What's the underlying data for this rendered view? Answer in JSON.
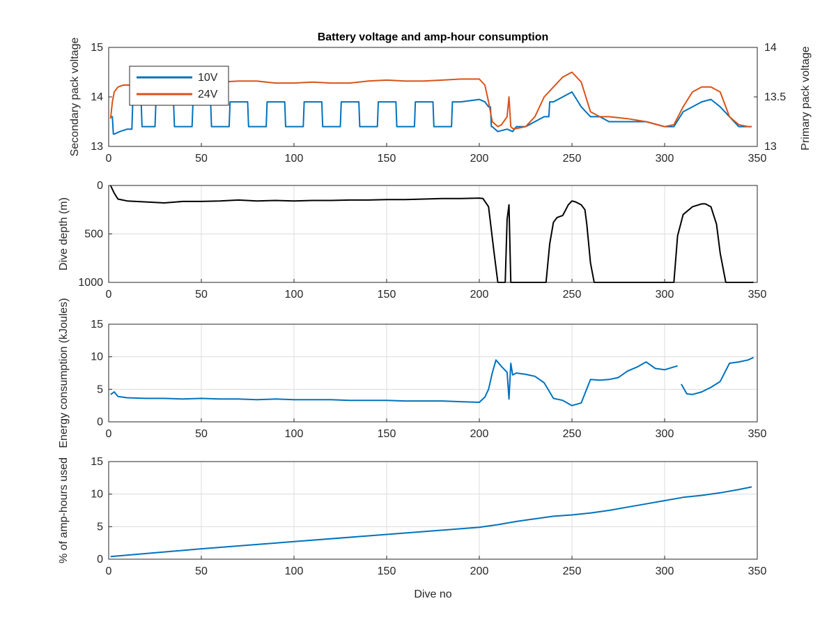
{
  "figure": {
    "title": "Battery voltage and amp-hour consumption",
    "xlabel": "Dive no",
    "colors": {
      "blue": "#0072BD",
      "orange": "#D95319",
      "black": "#000000",
      "axis": "#262626"
    }
  },
  "chart_data": [
    {
      "type": "line",
      "title": "Battery voltage and amp-hour consumption",
      "xlabel": "",
      "xlim": [
        0,
        350
      ],
      "xticks": [
        "0",
        "50",
        "100",
        "150",
        "200",
        "250",
        "300",
        "350"
      ],
      "ylabel": "Secondary pack voltage",
      "ylim": [
        13,
        15
      ],
      "yticks": [
        "13",
        "14",
        "15"
      ],
      "ylabel_right": "Primary pack voltage",
      "ylim_right": [
        13,
        14
      ],
      "yticks_right": [
        "13",
        "13.5",
        "14"
      ],
      "grid": false,
      "legend": "top-left",
      "series": [
        {
          "name": "10V",
          "axis": "left",
          "color": "#0072BD",
          "style": "square-wave",
          "x": [
            1,
            3,
            6,
            10,
            15,
            20,
            30,
            40,
            50,
            60,
            70,
            80,
            90,
            100,
            110,
            120,
            130,
            140,
            150,
            160,
            170,
            180,
            190,
            200,
            203,
            205,
            207,
            210,
            215,
            218,
            220,
            225,
            230,
            235,
            240,
            245,
            250,
            255,
            260,
            265,
            270,
            280,
            290,
            300,
            305,
            310,
            315,
            320,
            325,
            330,
            335,
            340,
            345,
            347
          ],
          "y": [
            13.6,
            13.25,
            13.3,
            13.35,
            13.9,
            13.4,
            13.9,
            13.4,
            13.9,
            13.4,
            13.9,
            13.4,
            13.9,
            13.4,
            13.9,
            13.4,
            13.9,
            13.4,
            13.9,
            13.4,
            13.9,
            13.4,
            13.9,
            13.95,
            13.9,
            13.8,
            13.4,
            13.3,
            13.35,
            13.3,
            13.4,
            13.4,
            13.5,
            13.6,
            13.9,
            14.0,
            14.1,
            13.8,
            13.6,
            13.6,
            13.5,
            13.5,
            13.5,
            13.4,
            13.4,
            13.7,
            13.8,
            13.9,
            13.95,
            13.8,
            13.6,
            13.4,
            13.4,
            13.4
          ]
        },
        {
          "name": "24V",
          "axis": "right",
          "color": "#D95319",
          "x": [
            1,
            2,
            3,
            5,
            8,
            10,
            20,
            30,
            40,
            50,
            60,
            70,
            80,
            90,
            100,
            110,
            120,
            130,
            140,
            150,
            160,
            170,
            180,
            190,
            200,
            203,
            205,
            207,
            210,
            212,
            215,
            216,
            217,
            218,
            220,
            225,
            230,
            235,
            240,
            245,
            250,
            255,
            260,
            265,
            270,
            280,
            290,
            300,
            305,
            310,
            315,
            320,
            325,
            330,
            335,
            340,
            345,
            347
          ],
          "y": [
            13.28,
            13.45,
            13.55,
            13.6,
            13.62,
            13.62,
            13.62,
            13.62,
            13.64,
            13.64,
            13.65,
            13.66,
            13.66,
            13.64,
            13.64,
            13.65,
            13.64,
            13.64,
            13.66,
            13.67,
            13.66,
            13.66,
            13.67,
            13.68,
            13.68,
            13.62,
            13.45,
            13.25,
            13.2,
            13.22,
            13.3,
            13.5,
            13.2,
            13.18,
            13.18,
            13.2,
            13.3,
            13.5,
            13.6,
            13.7,
            13.75,
            13.65,
            13.35,
            13.3,
            13.3,
            13.28,
            13.25,
            13.2,
            13.22,
            13.4,
            13.55,
            13.6,
            13.6,
            13.55,
            13.3,
            13.22,
            13.2,
            13.2
          ]
        }
      ]
    },
    {
      "type": "line",
      "title": "",
      "xlabel": "",
      "xlim": [
        0,
        350
      ],
      "xticks": [
        "0",
        "50",
        "100",
        "150",
        "200",
        "250",
        "300",
        "350"
      ],
      "ylabel": "Dive depth (m)",
      "ylim": [
        0,
        1000
      ],
      "y_reversed": true,
      "yticks": [
        "0",
        "500",
        "1000"
      ],
      "grid": true,
      "series": [
        {
          "name": "",
          "color": "#000000",
          "x": [
            1,
            3,
            5,
            10,
            20,
            30,
            40,
            50,
            60,
            70,
            80,
            90,
            100,
            110,
            120,
            130,
            140,
            150,
            160,
            170,
            180,
            190,
            200,
            202,
            205,
            208,
            210,
            214,
            215,
            216,
            217,
            218,
            220,
            230,
            236,
            238,
            240,
            242,
            245,
            248,
            250,
            252,
            255,
            257,
            258,
            260,
            262,
            290,
            300,
            305,
            307,
            310,
            315,
            320,
            322,
            325,
            328,
            330,
            333,
            340,
            348
          ],
          "y": [
            0,
            80,
            140,
            160,
            170,
            180,
            165,
            165,
            160,
            150,
            160,
            155,
            160,
            155,
            155,
            150,
            150,
            145,
            145,
            140,
            135,
            135,
            130,
            135,
            220,
            700,
            1000,
            1000,
            350,
            200,
            1000,
            1000,
            1000,
            1000,
            1000,
            600,
            380,
            330,
            310,
            200,
            160,
            170,
            200,
            250,
            400,
            800,
            1000,
            1000,
            1000,
            1000,
            520,
            300,
            220,
            190,
            190,
            220,
            400,
            700,
            1000,
            1000,
            1000
          ]
        }
      ]
    },
    {
      "type": "line",
      "title": "",
      "xlabel": "",
      "xlim": [
        0,
        350
      ],
      "xticks": [
        "0",
        "50",
        "100",
        "150",
        "200",
        "250",
        "300",
        "350"
      ],
      "ylabel": "Energy consumption (kJoules)",
      "ylim": [
        0,
        15
      ],
      "yticks": [
        "0",
        "5",
        "10",
        "15"
      ],
      "grid": true,
      "series": [
        {
          "name": "",
          "color": "#0072BD",
          "gap_after_x": 307,
          "x": [
            1,
            3,
            5,
            10,
            20,
            30,
            40,
            50,
            60,
            70,
            80,
            90,
            100,
            110,
            120,
            130,
            140,
            150,
            160,
            170,
            180,
            190,
            200,
            203,
            205,
            207,
            209,
            212,
            215,
            216,
            217,
            218,
            220,
            225,
            230,
            235,
            240,
            245,
            250,
            255,
            260,
            265,
            270,
            275,
            280,
            285,
            290,
            295,
            300,
            307,
            309,
            312,
            315,
            320,
            325,
            330,
            335,
            340,
            345,
            348
          ],
          "y": [
            4.2,
            4.6,
            3.9,
            3.7,
            3.6,
            3.6,
            3.5,
            3.6,
            3.5,
            3.5,
            3.4,
            3.5,
            3.4,
            3.4,
            3.4,
            3.3,
            3.3,
            3.3,
            3.2,
            3.2,
            3.2,
            3.1,
            3.0,
            3.8,
            5.0,
            7.5,
            9.5,
            8.5,
            7.6,
            3.5,
            9.0,
            7.2,
            7.5,
            7.3,
            7.0,
            6.0,
            3.6,
            3.3,
            2.5,
            2.9,
            6.5,
            6.4,
            6.5,
            6.8,
            7.8,
            8.4,
            9.2,
            8.2,
            8.0,
            8.6,
            5.8,
            4.3,
            4.2,
            4.6,
            5.3,
            6.2,
            9.0,
            9.2,
            9.5,
            9.9
          ]
        }
      ]
    },
    {
      "type": "line",
      "title": "",
      "xlabel": "Dive no",
      "xlim": [
        0,
        350
      ],
      "xticks": [
        "0",
        "50",
        "100",
        "150",
        "200",
        "250",
        "300",
        "350"
      ],
      "ylabel": "% of amp-hours used",
      "ylim": [
        0,
        15
      ],
      "yticks": [
        "0",
        "5",
        "10",
        "15"
      ],
      "grid": true,
      "series": [
        {
          "name": "",
          "color": "#0072BD",
          "x": [
            1,
            50,
            100,
            150,
            200,
            210,
            220,
            230,
            240,
            250,
            260,
            270,
            280,
            290,
            300,
            310,
            320,
            330,
            340,
            347
          ],
          "y": [
            0.4,
            1.6,
            2.7,
            3.8,
            4.9,
            5.3,
            5.8,
            6.2,
            6.6,
            6.8,
            7.1,
            7.5,
            8.0,
            8.5,
            9.0,
            9.5,
            9.8,
            10.2,
            10.7,
            11.1
          ]
        }
      ]
    }
  ]
}
